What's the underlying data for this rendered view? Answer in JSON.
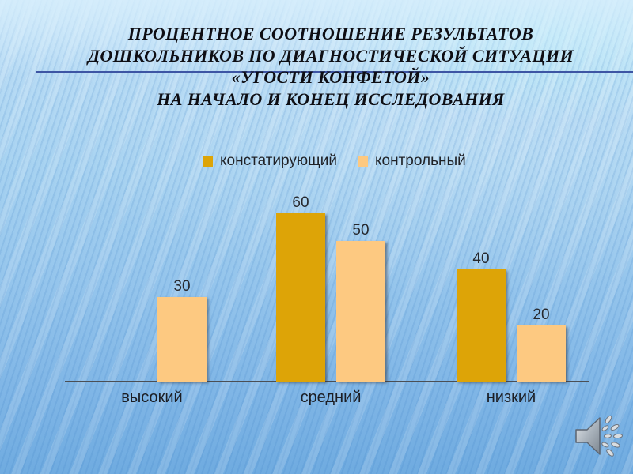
{
  "title": {
    "lines": [
      "ПРОЦЕНТНОЕ СООТНОШЕНИЕ РЕЗУЛЬТАТОВ",
      "ДОШКОЛЬНИКОВ ПО ДИАГНОСТИЧЕСКОЙ СИТУАЦИИ",
      "«УГОСТИ КОНФЕТОЙ»",
      "НА НАЧАЛО И КОНЕЦ ИССЛЕДОВАНИЯ"
    ]
  },
  "chart_data": {
    "type": "bar",
    "categories": [
      "высокий",
      "средний",
      "низкий"
    ],
    "series": [
      {
        "name": "констатирующий",
        "color": "#DDA407",
        "values": [
          0,
          60,
          40
        ]
      },
      {
        "name": "контрольный",
        "color": "#FDC981",
        "values": [
          30,
          50,
          20
        ]
      }
    ],
    "value_labels": [
      [
        "",
        "60",
        "40"
      ],
      [
        "30",
        "50",
        "20"
      ]
    ],
    "ylim": [
      0,
      60
    ],
    "legend_position": "top-center",
    "gridlines": false,
    "y_axis_shown": false,
    "x_axis_shown": true
  },
  "colors": {
    "title_text": "#0e0e14",
    "title_rule": "#3d55a4",
    "axis_line": "#4b4f55",
    "background_accent": "#9ccbee"
  },
  "icons": {
    "audio": "speaker-icon"
  }
}
